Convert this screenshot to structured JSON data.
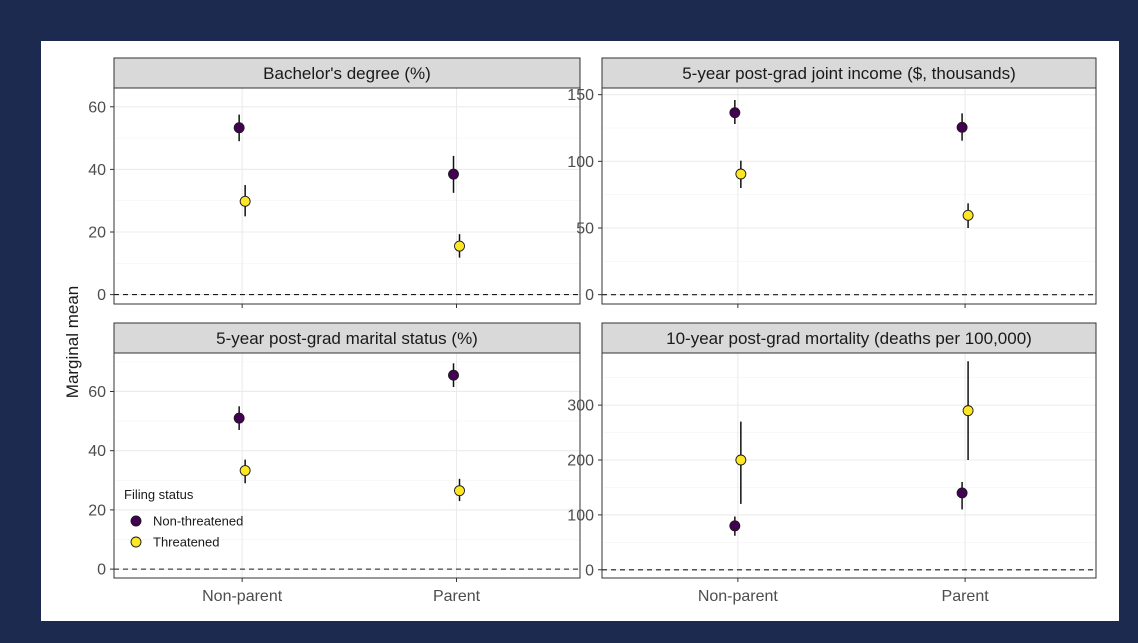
{
  "ylabel": "Marginal mean",
  "legend": {
    "title": "Filing status",
    "entries": [
      {
        "label": "Non-threatened",
        "color": "#440154"
      },
      {
        "label": "Threatened",
        "color": "#fde725"
      }
    ]
  },
  "chart_data": [
    {
      "type": "scatter",
      "title": "Bachelor's degree (%)",
      "categories": [
        "Non-parent",
        "Parent"
      ],
      "show_x_labels": false,
      "ylim": [
        -3,
        66
      ],
      "yticks": [
        0,
        20,
        40,
        60
      ],
      "reference_line": 0,
      "grid": true,
      "series": [
        {
          "name": "Non-threatened",
          "color": "#440154",
          "values": [
            53.3,
            38.5
          ],
          "lower": [
            49,
            32.5
          ],
          "upper": [
            57.5,
            44.3
          ]
        },
        {
          "name": "Threatened",
          "color": "#fde725",
          "values": [
            29.8,
            15.5
          ],
          "lower": [
            25,
            11.8
          ],
          "upper": [
            35,
            19.3
          ]
        }
      ]
    },
    {
      "type": "scatter",
      "title": "5-year post-grad joint income ($, thousands)",
      "categories": [
        "Non-parent",
        "Parent"
      ],
      "show_x_labels": false,
      "ylim": [
        -7,
        155
      ],
      "yticks": [
        0,
        50,
        100,
        150
      ],
      "reference_line": 0,
      "grid": true,
      "series": [
        {
          "name": "Non-threatened",
          "color": "#440154",
          "values": [
            136.5,
            125.5
          ],
          "lower": [
            128,
            115.5
          ],
          "upper": [
            146,
            136
          ]
        },
        {
          "name": "Threatened",
          "color": "#fde725",
          "values": [
            90.5,
            59.5
          ],
          "lower": [
            80,
            50
          ],
          "upper": [
            100.5,
            68.5
          ]
        }
      ]
    },
    {
      "type": "scatter",
      "title": "5-year post-grad marital status (%)",
      "categories": [
        "Non-parent",
        "Parent"
      ],
      "show_x_labels": true,
      "ylim": [
        -3,
        73
      ],
      "yticks": [
        0,
        20,
        40,
        60
      ],
      "reference_line": 0,
      "grid": true,
      "series": [
        {
          "name": "Non-threatened",
          "color": "#440154",
          "values": [
            51,
            65.5
          ],
          "lower": [
            47,
            61.5
          ],
          "upper": [
            55,
            69.5
          ]
        },
        {
          "name": "Threatened",
          "color": "#fde725",
          "values": [
            33.3,
            26.5
          ],
          "lower": [
            29,
            23
          ],
          "upper": [
            37,
            30.5
          ]
        }
      ]
    },
    {
      "type": "scatter",
      "title": "10-year post-grad mortality (deaths per 100,000)",
      "categories": [
        "Non-parent",
        "Parent"
      ],
      "show_x_labels": true,
      "ylim": [
        -15,
        395
      ],
      "yticks": [
        0,
        100,
        200,
        300
      ],
      "reference_line": 0,
      "grid": true,
      "series": [
        {
          "name": "Non-threatened",
          "color": "#440154",
          "values": [
            80,
            140
          ],
          "lower": [
            62,
            110
          ],
          "upper": [
            97,
            160
          ]
        },
        {
          "name": "Threatened",
          "color": "#fde725",
          "values": [
            200,
            290
          ],
          "lower": [
            120,
            200
          ],
          "upper": [
            270,
            380
          ]
        }
      ]
    }
  ]
}
